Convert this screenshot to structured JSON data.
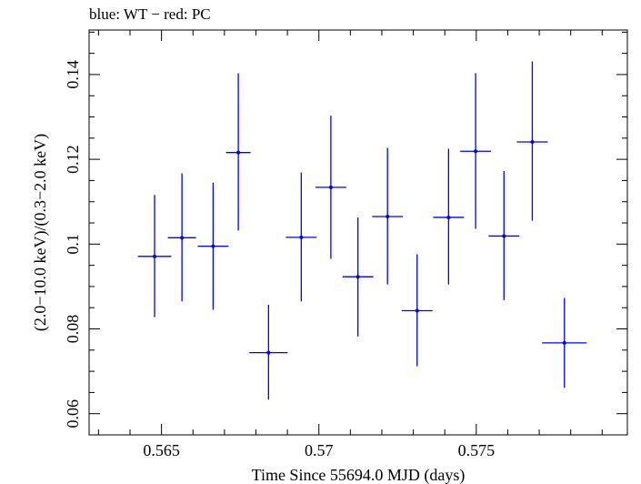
{
  "chart_data": {
    "type": "scatter",
    "title": "blue: WT − red: PC",
    "xlabel": "Time Since 55694.0 MJD (days)",
    "ylabel": "(2.0−10.0 keV)/(0.3−2.0 keV)",
    "xlim": [
      0.5627,
      0.5798
    ],
    "ylim": [
      0.055,
      0.1505
    ],
    "xticks": [
      0.565,
      0.57,
      0.575
    ],
    "xtick_labels": [
      "0.565",
      "0.57",
      "0.575"
    ],
    "yticks": [
      0.06,
      0.08,
      0.1,
      0.12,
      0.14
    ],
    "ytick_labels": [
      "0.06",
      "0.08",
      "0.1",
      "0.12",
      "0.14"
    ],
    "grid": false,
    "legend": "none",
    "series": [
      {
        "name": "WT",
        "color": "#0000ff",
        "points": [
          {
            "x": 0.56478,
            "xerr": 0.00053,
            "y": 0.0971,
            "ylo": 0.0828,
            "yhi": 0.1116
          },
          {
            "x": 0.56565,
            "xerr": 0.00045,
            "y": 0.1015,
            "ylo": 0.0865,
            "yhi": 0.1167
          },
          {
            "x": 0.56664,
            "xerr": 0.00049,
            "y": 0.0995,
            "ylo": 0.0845,
            "yhi": 0.1145
          },
          {
            "x": 0.56744,
            "xerr": 0.00039,
            "y": 0.1216,
            "ylo": 0.1032,
            "yhi": 0.1403
          },
          {
            "x": 0.5684,
            "xerr": 0.00061,
            "y": 0.0744,
            "ylo": 0.0633,
            "yhi": 0.0857
          },
          {
            "x": 0.56944,
            "xerr": 0.00049,
            "y": 0.1016,
            "ylo": 0.0865,
            "yhi": 0.1169
          },
          {
            "x": 0.57038,
            "xerr": 0.00049,
            "y": 0.1134,
            "ylo": 0.0965,
            "yhi": 0.1303
          },
          {
            "x": 0.57124,
            "xerr": 0.00049,
            "y": 0.0923,
            "ylo": 0.0782,
            "yhi": 0.1063
          },
          {
            "x": 0.57218,
            "xerr": 0.00049,
            "y": 0.1065,
            "ylo": 0.0905,
            "yhi": 0.1227
          },
          {
            "x": 0.57312,
            "xerr": 0.00049,
            "y": 0.0843,
            "ylo": 0.0712,
            "yhi": 0.0976
          },
          {
            "x": 0.57412,
            "xerr": 0.00049,
            "y": 0.1063,
            "ylo": 0.0905,
            "yhi": 0.1225
          },
          {
            "x": 0.57498,
            "xerr": 0.00049,
            "y": 0.1219,
            "ylo": 0.1036,
            "yhi": 0.1403
          },
          {
            "x": 0.57588,
            "xerr": 0.00049,
            "y": 0.1019,
            "ylo": 0.0868,
            "yhi": 0.1172
          },
          {
            "x": 0.57678,
            "xerr": 0.00049,
            "y": 0.1241,
            "ylo": 0.1055,
            "yhi": 0.1431
          },
          {
            "x": 0.5778,
            "xerr": 0.00071,
            "y": 0.0767,
            "ylo": 0.0661,
            "yhi": 0.0873
          }
        ]
      }
    ]
  }
}
